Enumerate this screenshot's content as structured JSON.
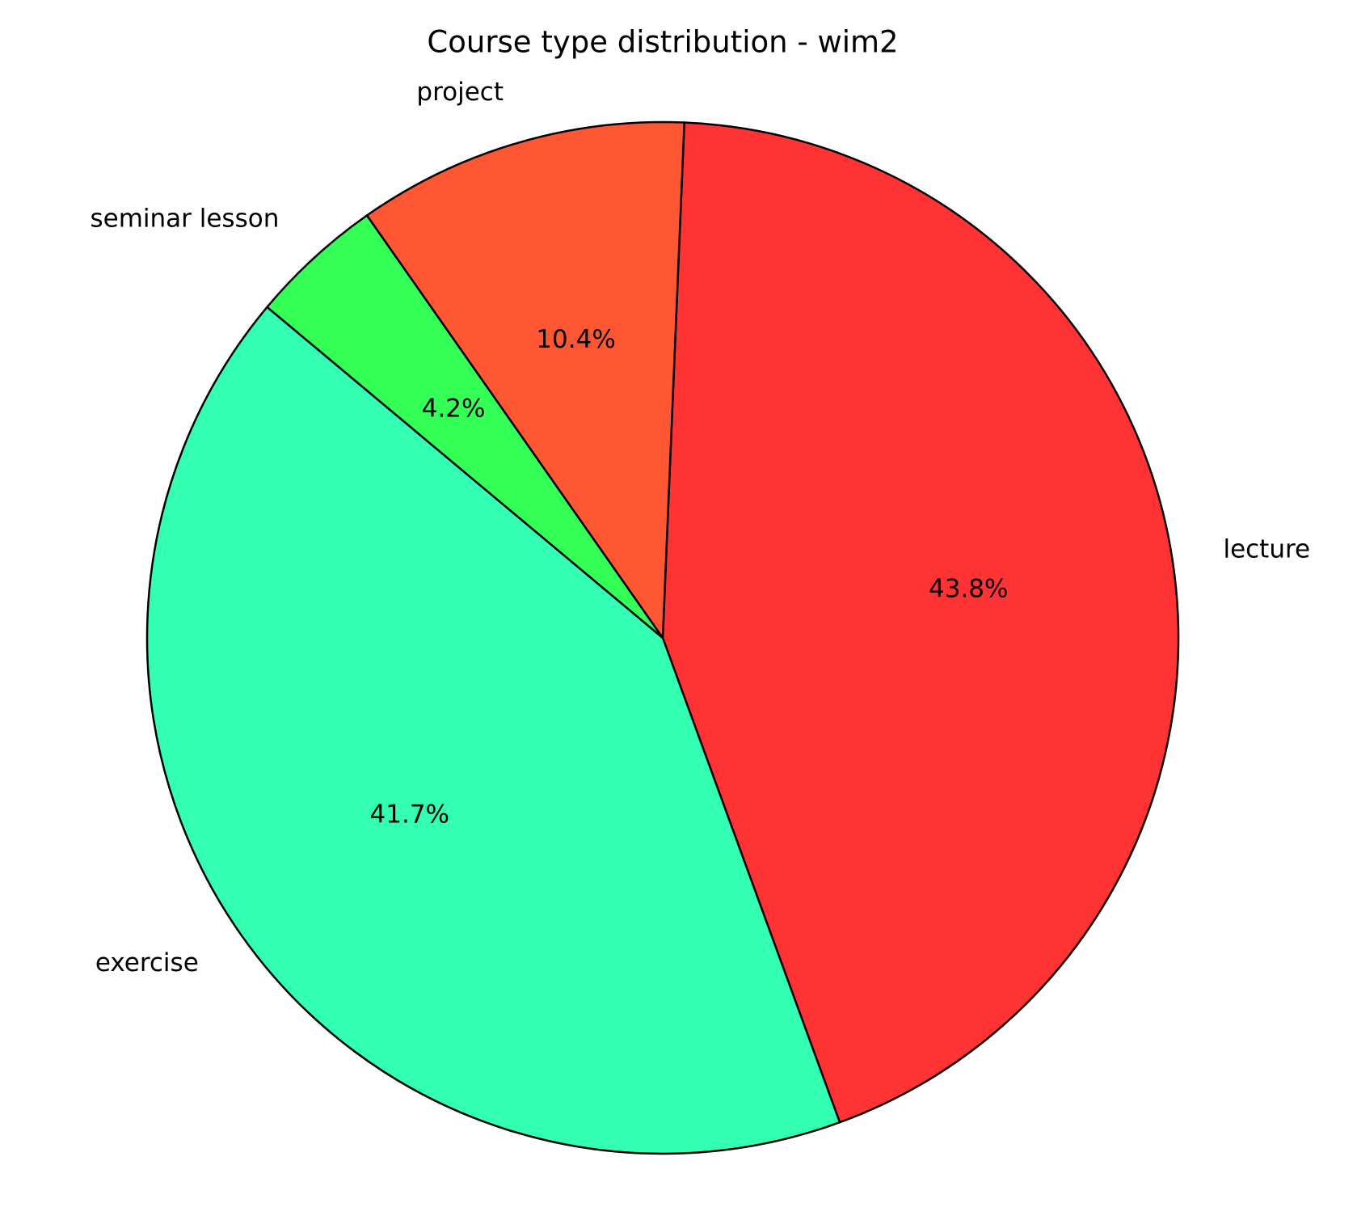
{
  "chart_data": {
    "type": "pie",
    "title": "Course type distribution - wim2",
    "categories": [
      "lecture",
      "exercise",
      "seminar lesson",
      "project"
    ],
    "values": [
      43.8,
      41.7,
      4.2,
      10.4
    ],
    "value_labels": [
      "43.8%",
      "41.7%",
      "4.2%",
      "10.4%"
    ],
    "colors": [
      "#ff3333",
      "#33ffb3",
      "#33ff57",
      "#ff5733"
    ]
  }
}
